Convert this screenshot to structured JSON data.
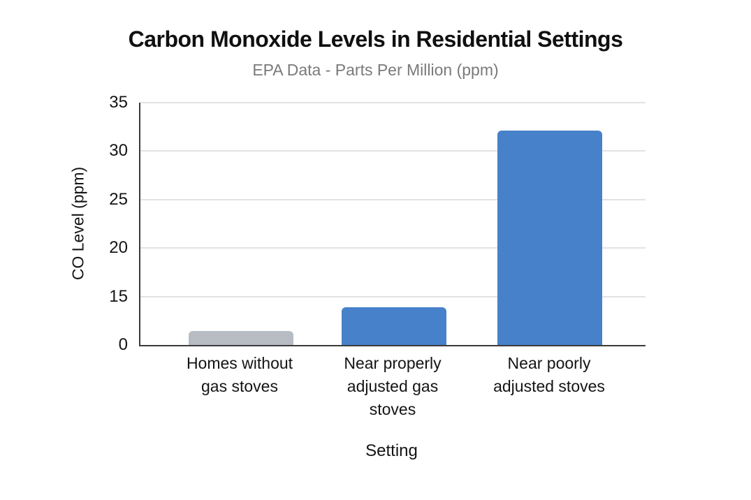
{
  "chart_data": {
    "type": "bar",
    "title": "Carbon Monoxide Levels in Residential Settings",
    "subtitle": "EPA Data - Parts Per Million (ppm)",
    "xlabel": "Setting",
    "ylabel": "CO Level (ppm)",
    "categories": [
      "Homes without gas stoves",
      "Near properly adjusted gas stoves",
      "Near poorly adjusted stoves"
    ],
    "values": [
      2,
      5.5,
      31
    ],
    "unit": "ppm",
    "ylim": [
      0,
      35
    ],
    "y_ticks_displayed": [
      "0",
      "15",
      "20",
      "25",
      "30",
      "35"
    ],
    "y_axis_note": "tick labels 0,15,20,25,30,35 are evenly spaced (values 5 and 10 omitted - distorted scale)",
    "grid": "horizontal gridlines at each tick, light gray",
    "legend": false,
    "bar_colors": [
      "#b6bcc2",
      "#4781ca",
      "#4781ca"
    ],
    "x_tick_labels_display": [
      "Homes without\ngas stoves",
      "Near properly\nadjusted gas\nstoves",
      "Near poorly\nadjusted stoves"
    ],
    "colors": {
      "background": "#ffffff",
      "title_text": "#101010",
      "subtitle_text": "#7a7a7a",
      "tick_text": "#141414",
      "axis_line": "#3b3b3b",
      "gridline": "#e2e2e2",
      "bar_gray": "#b6bcc2",
      "bar_blue": "#4781ca"
    }
  }
}
